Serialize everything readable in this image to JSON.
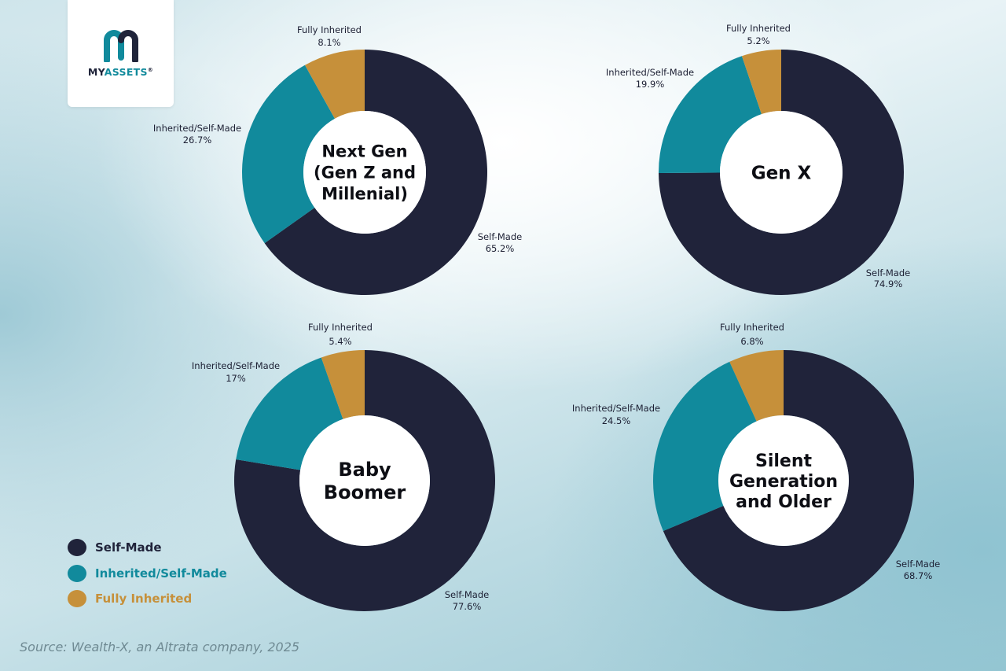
{
  "logo": {
    "brand_part1": "MY",
    "brand_part2": "ASSETS",
    "mark": "®",
    "icon": "myassets-m-arch-icon"
  },
  "colors": {
    "self_made": "#20233a",
    "inherited_self_made": "#118a9c",
    "fully_inherited": "#c6903a"
  },
  "chart_data": [
    {
      "type": "pie",
      "style": "donut",
      "center_label": [
        "Next Gen",
        "(Gen Z and",
        "Millenial)"
      ],
      "slices": [
        {
          "label": "Self-Made",
          "value": 65.2,
          "value_text": "65.2%"
        },
        {
          "label": "Inherited/Self-Made",
          "value": 26.7,
          "value_text": "26.7%"
        },
        {
          "label": "Fully Inherited",
          "value": 8.1,
          "value_text": "8.1%"
        }
      ]
    },
    {
      "type": "pie",
      "style": "donut",
      "center_label": [
        "Gen X"
      ],
      "slices": [
        {
          "label": "Self-Made",
          "value": 74.9,
          "value_text": "74.9%"
        },
        {
          "label": "Inherited/Self-Made",
          "value": 19.9,
          "value_text": "19.9%"
        },
        {
          "label": "Fully Inherited",
          "value": 5.2,
          "value_text": "5.2%"
        }
      ]
    },
    {
      "type": "pie",
      "style": "donut",
      "center_label": [
        "Baby",
        "Boomer"
      ],
      "slices": [
        {
          "label": "Self-Made",
          "value": 77.6,
          "value_text": "77.6%"
        },
        {
          "label": "Inherited/Self-Made",
          "value": 17,
          "value_text": "17%"
        },
        {
          "label": "Fully Inherited",
          "value": 5.4,
          "value_text": "5.4%"
        }
      ]
    },
    {
      "type": "pie",
      "style": "donut",
      "center_label": [
        "Silent",
        "Generation",
        "and Older"
      ],
      "slices": [
        {
          "label": "Self-Made",
          "value": 68.7,
          "value_text": "68.7%"
        },
        {
          "label": "Inherited/Self-Made",
          "value": 24.5,
          "value_text": "24.5%"
        },
        {
          "label": "Fully Inherited",
          "value": 6.8,
          "value_text": "6.8%"
        }
      ]
    }
  ],
  "legend": {
    "placement": "bottom-left",
    "items": [
      {
        "label": "Self-Made",
        "color": "#20233a"
      },
      {
        "label": "Inherited/Self-Made",
        "color": "#118a9c"
      },
      {
        "label": "Fully Inherited",
        "color": "#c6903a"
      }
    ]
  },
  "source": "Source:  Wealth-X, an Altrata company, 2025"
}
